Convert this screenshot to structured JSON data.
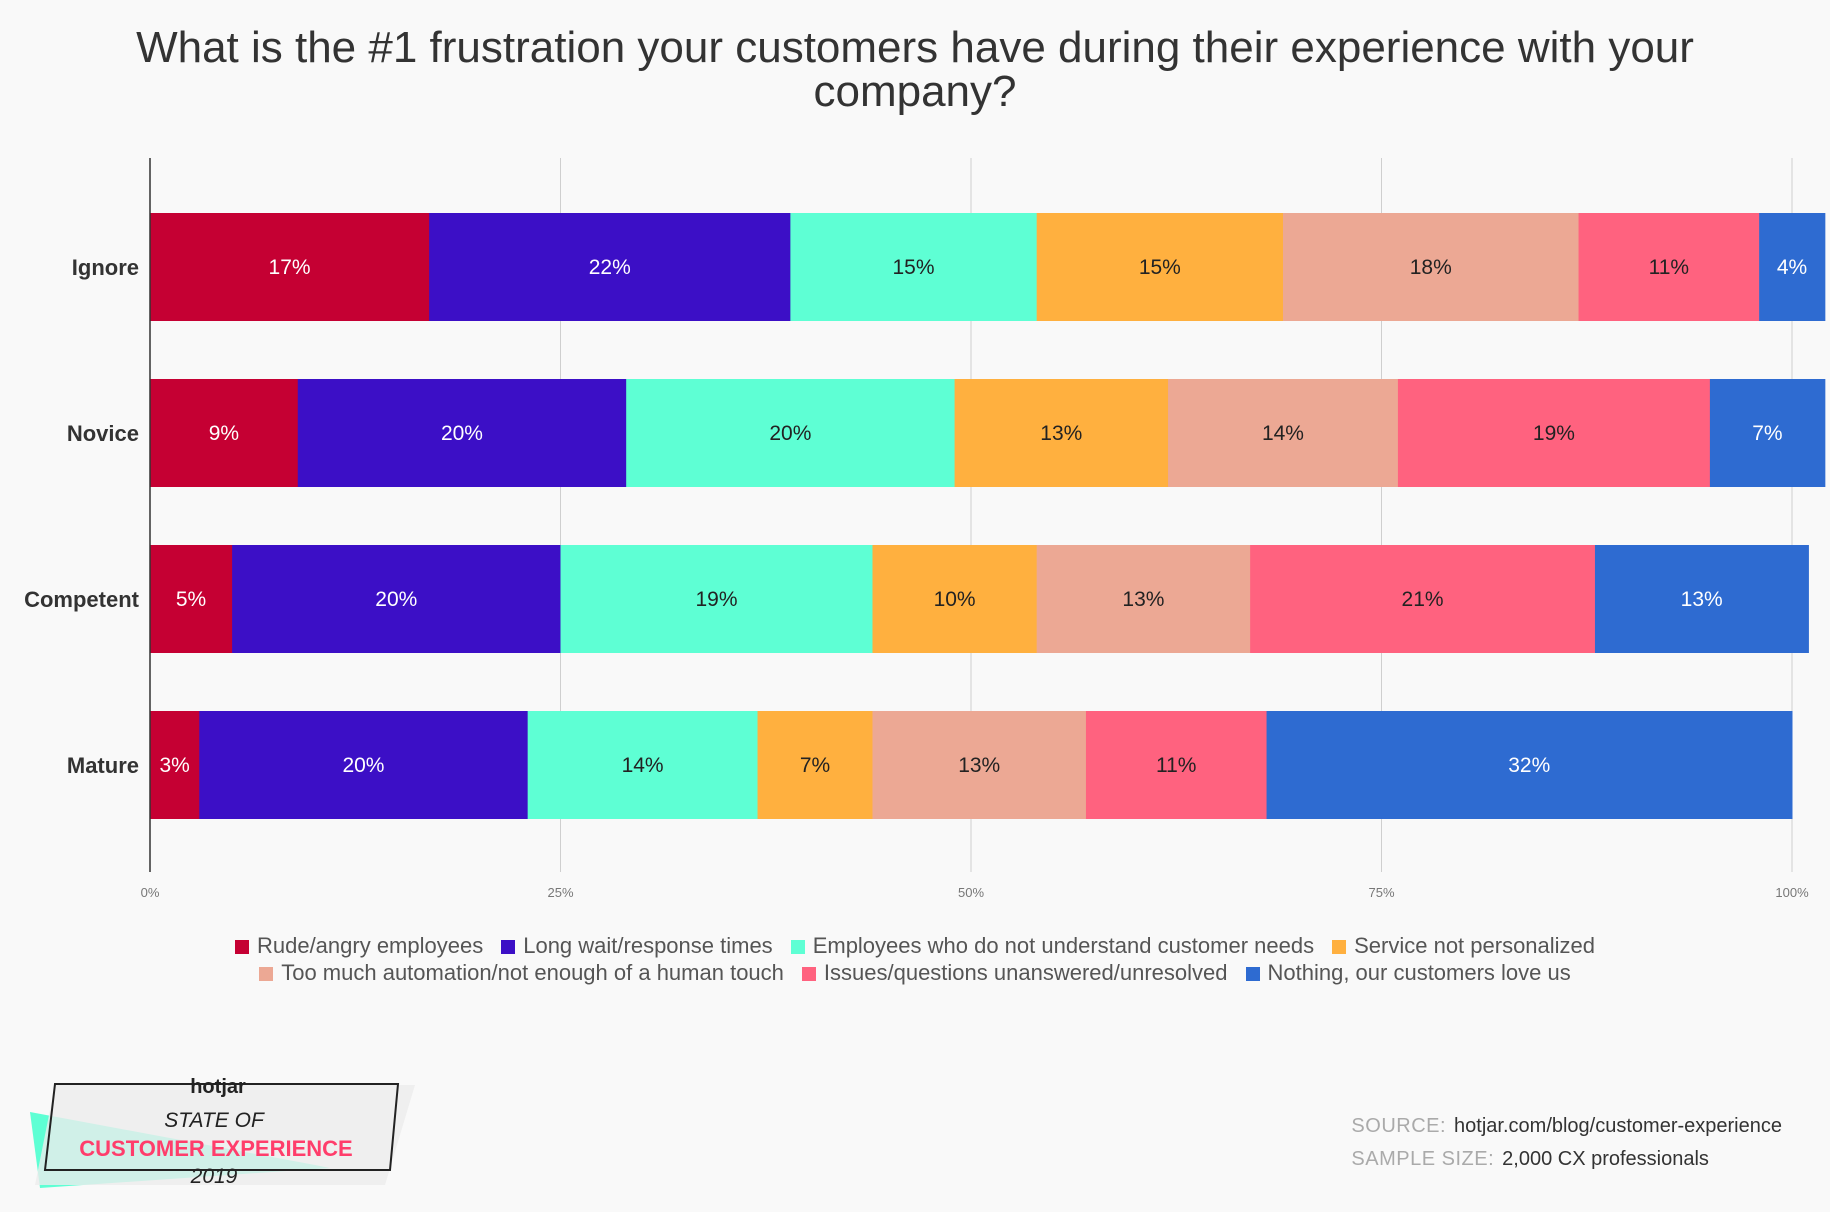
{
  "chart_data": {
    "type": "bar",
    "orientation": "horizontal",
    "stacked": "percent",
    "title": "What is the #1 frustration your customers have during their experience with your company?",
    "categories": [
      "Ignore",
      "Novice",
      "Competent",
      "Mature"
    ],
    "series": [
      {
        "name": "Rude/angry employees",
        "color": "#c50033",
        "label_color": "#ffffff",
        "values": [
          17,
          9,
          5,
          3
        ]
      },
      {
        "name": "Long wait/response times",
        "color": "#3c0fc6",
        "label_color": "#ffffff",
        "values": [
          22,
          20,
          20,
          20
        ]
      },
      {
        "name": "Employees who do not understand customer needs",
        "color": "#5effd4",
        "label_color": "#222222",
        "values": [
          15,
          20,
          19,
          14
        ]
      },
      {
        "name": "Service not personalized",
        "color": "#ffb03f",
        "label_color": "#222222",
        "values": [
          15,
          13,
          10,
          7
        ]
      },
      {
        "name": "Too much automation/not enough of a human touch",
        "color": "#eca894",
        "label_color": "#222222",
        "values": [
          18,
          14,
          13,
          13
        ]
      },
      {
        "name": "Issues/questions unanswered/unresolved",
        "color": "#ff627f",
        "label_color": "#222222",
        "values": [
          11,
          19,
          21,
          11
        ]
      },
      {
        "name": "Nothing, our customers love us",
        "color": "#2e6bd1",
        "label_color": "#ffffff",
        "values": [
          4,
          7,
          13,
          32
        ]
      }
    ],
    "xlim": [
      0,
      100
    ],
    "x_ticks": [
      "0%",
      "25%",
      "50%",
      "75%",
      "100%"
    ],
    "grid": true,
    "legend_position": "bottom"
  },
  "branding": {
    "logo": "hotjar",
    "line1": "STATE OF",
    "line2": "CUSTOMER EXPERIENCE",
    "year": "2019"
  },
  "footer": {
    "source_label": "SOURCE:",
    "source_value": "hotjar.com/blog/customer-experience",
    "sample_label": "SAMPLE SIZE:",
    "sample_value": "2,000 CX professionals"
  }
}
